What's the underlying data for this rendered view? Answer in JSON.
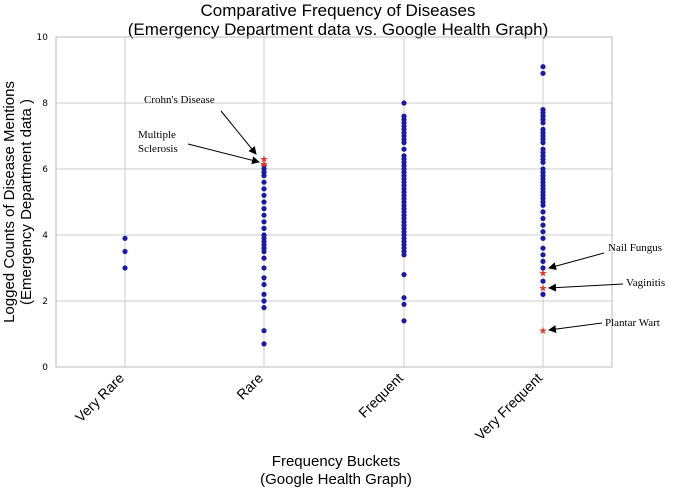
{
  "chart_data": {
    "type": "scatter",
    "title": [
      "Comparative Frequency of Diseases",
      "(Emergency Department data vs. Google Health Graph)"
    ],
    "xlabel": [
      "Frequency Buckets",
      "(Google Health Graph)"
    ],
    "ylabel": [
      "Logged Counts of Disease Mentions",
      "(Emergency Department data )"
    ],
    "ylim": [
      0,
      10
    ],
    "yticks": [
      0,
      2,
      4,
      6,
      8,
      10
    ],
    "grid": true,
    "categories": [
      "Very Rare",
      "Rare",
      "Frequent",
      "Very Frequent"
    ],
    "colors": {
      "normal": "#1a1aa6",
      "highlight": "#e8342a",
      "grid": "#cccccc"
    },
    "series": [
      {
        "category": "Very Rare",
        "values": [
          3.9,
          3.5,
          3.0
        ]
      },
      {
        "category": "Rare",
        "values": [
          6.1,
          6.0,
          5.9,
          5.8,
          5.6,
          5.4,
          5.2,
          5.0,
          4.8,
          4.6,
          4.4,
          4.2,
          4.0,
          3.9,
          3.8,
          3.7,
          3.6,
          3.5,
          3.3,
          3.0,
          2.7,
          2.5,
          2.2,
          2.0,
          1.8,
          1.1,
          0.7
        ]
      },
      {
        "category": "Frequent",
        "values": [
          8.0,
          7.6,
          7.5,
          7.4,
          7.3,
          7.2,
          7.1,
          7.0,
          6.9,
          6.8,
          6.6,
          6.4,
          6.3,
          6.2,
          6.1,
          6.0,
          5.9,
          5.8,
          5.7,
          5.6,
          5.5,
          5.4,
          5.3,
          5.2,
          5.1,
          5.0,
          4.9,
          4.8,
          4.7,
          4.6,
          4.5,
          4.4,
          4.3,
          4.2,
          4.1,
          4.0,
          3.9,
          3.8,
          3.7,
          3.6,
          3.5,
          3.4,
          2.8,
          2.1,
          1.9,
          1.4
        ]
      },
      {
        "category": "Very Frequent",
        "values": [
          9.1,
          8.9,
          7.8,
          7.7,
          7.6,
          7.5,
          7.4,
          7.2,
          7.1,
          7.0,
          6.9,
          6.8,
          6.6,
          6.5,
          6.4,
          6.3,
          6.2,
          6.0,
          5.9,
          5.8,
          5.7,
          5.6,
          5.5,
          5.4,
          5.3,
          5.2,
          5.1,
          5.0,
          4.9,
          4.7,
          4.5,
          4.3,
          4.1,
          3.9,
          3.6,
          3.4,
          3.2,
          3.0,
          2.6,
          2.2
        ]
      }
    ],
    "highlights": [
      {
        "category": "Rare",
        "value": 6.3,
        "label": "Crohn's Disease"
      },
      {
        "category": "Rare",
        "value": 6.15,
        "label": "Multiple Sclerosis"
      },
      {
        "category": "Very Frequent",
        "value": 2.85,
        "label": "Nail Fungus"
      },
      {
        "category": "Very Frequent",
        "value": 2.4,
        "label": "Vaginitis"
      },
      {
        "category": "Very Frequent",
        "value": 1.1,
        "label": "Plantar Wart"
      }
    ],
    "annotations": [
      {
        "lines": [
          "Crohn's Disease"
        ]
      },
      {
        "lines": [
          "Multiple",
          "Sclerosis"
        ]
      },
      {
        "lines": [
          "Nail Fungus"
        ]
      },
      {
        "lines": [
          "Vaginitis"
        ]
      },
      {
        "lines": [
          "Plantar Wart"
        ]
      }
    ]
  }
}
